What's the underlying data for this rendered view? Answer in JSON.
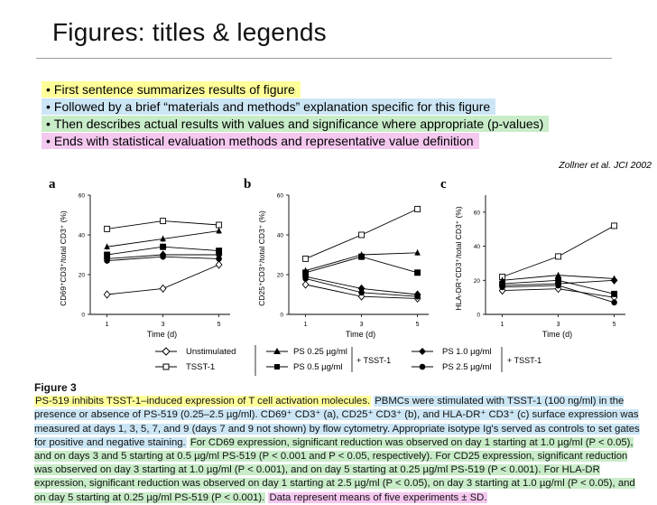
{
  "slide": {
    "title": "Figures: titles & legends"
  },
  "bullets": [
    {
      "dot": "•",
      "text": "First sentence summarizes results of figure",
      "color": "#ffff99"
    },
    {
      "dot": "•",
      "text": "Followed by a brief “materials and methods” explanation specific for this figure",
      "color": "#cce6f5"
    },
    {
      "dot": "•",
      "text": "Then describes actual results with values and significance where appropriate (p-values)",
      "color": "#c8ecc8"
    },
    {
      "dot": "•",
      "text": "Ends with statistical evaluation methods and representative value definition",
      "color": "#f5c8f0"
    }
  ],
  "citation": "Zollner et al. JCI 2002",
  "legend": {
    "unstimulated": "Unstimulated",
    "tsst1": "TSST-1",
    "ps025": "PS 0.25 µg/ml",
    "ps05": "PS 0.5 µg/ml",
    "ps1": "PS 1.0 µg/ml",
    "ps25": "PS 2.5 µg/ml",
    "plus_tsst_1": "+ TSST-1",
    "plus_tsst_2": "+ TSST-1"
  },
  "caption": {
    "figure_label": "Figure 3",
    "sentence_title": "PS-519 inhibits TSST-1–induced expression of T cell activation molecules.",
    "sentence_methods": "PBMCs were stimulated with TSST-1 (100 ng/ml) in the presence or absence of PS-519 (0.25–2.5 µg/ml). CD69⁺ CD3⁺ (a), CD25⁺ CD3⁺ (b), and HLA-DR⁺ CD3⁺ (c) surface expression was measured at days 1, 3, 5, 7, and 9 (days 7 and 9 not shown) by flow cytometry. Appropriate isotype Ig's served as controls to set gates for positive and negative staining.",
    "sentence_results": "For CD69 expression, significant reduction was observed on day 1 starting at 1.0 µg/ml (P < 0.05), and on days 3 and 5 starting at 0.5 µg/ml PS-519 (P < 0.001 and P < 0.05, respectively). For CD25 expression, significant reduction was observed on day 3 starting at 1.0 µg/ml (P < 0.001), and on day 5 starting at 0.25 µg/ml PS-519 (P < 0.001). For HLA-DR expression, significant reduction was observed on day 1 starting at 2.5 µg/ml (P < 0.05), on day 3 starting at 1.0 µg/ml (P < 0.05), and on day 5 starting at 0.25 µg/ml PS-519 (P < 0.001).",
    "sentence_stats": "Data represent means of five experiments ± SD."
  },
  "chart_data": [
    {
      "type": "line",
      "panel_label": "a",
      "xlabel": "Time (d)",
      "ylabel": "CD69⁺CD3⁺/total CD3⁺ (%)",
      "x": [
        1,
        3,
        5
      ],
      "xticks": [
        "1",
        "3",
        "5"
      ],
      "yticks": [
        "0",
        "20",
        "40",
        "60"
      ],
      "ylim": [
        0,
        60
      ],
      "series": [
        {
          "name": "Unstimulated",
          "marker": "diamond-open",
          "values": [
            10,
            13,
            25
          ]
        },
        {
          "name": "TSST-1",
          "marker": "square-open",
          "values": [
            43,
            47,
            45
          ]
        },
        {
          "name": "PS 0.25 µg/ml",
          "marker": "triangle",
          "values": [
            34,
            38,
            42
          ]
        },
        {
          "name": "PS 0.5 µg/ml",
          "marker": "square",
          "values": [
            30,
            34,
            32
          ]
        },
        {
          "name": "PS 1.0 µg/ml",
          "marker": "diamond",
          "values": [
            28,
            30,
            30
          ]
        },
        {
          "name": "PS 2.5 µg/ml",
          "marker": "circle",
          "values": [
            27,
            29,
            28
          ]
        }
      ]
    },
    {
      "type": "line",
      "panel_label": "b",
      "xlabel": "Time (d)",
      "ylabel": "CD25⁺CD3⁺/total CD3⁺ (%)",
      "x": [
        1,
        3,
        5
      ],
      "xticks": [
        "1",
        "3",
        "5"
      ],
      "yticks": [
        "0",
        "20",
        "40",
        "60"
      ],
      "ylim": [
        0,
        60
      ],
      "series": [
        {
          "name": "Unstimulated",
          "marker": "diamond-open",
          "values": [
            15,
            9,
            8
          ]
        },
        {
          "name": "TSST-1",
          "marker": "square-open",
          "values": [
            28,
            40,
            53
          ]
        },
        {
          "name": "PS 0.25 µg/ml",
          "marker": "triangle",
          "values": [
            22,
            30,
            31
          ]
        },
        {
          "name": "PS 0.5 µg/ml",
          "marker": "square",
          "values": [
            21,
            29,
            21
          ]
        },
        {
          "name": "PS 1.0 µg/ml",
          "marker": "diamond",
          "values": [
            19,
            13,
            10
          ]
        },
        {
          "name": "PS 2.5 µg/ml",
          "marker": "circle",
          "values": [
            18,
            11,
            9
          ]
        }
      ]
    },
    {
      "type": "line",
      "panel_label": "c",
      "xlabel": "Time (d)",
      "ylabel": "HLA-DR⁺CD3⁺/total CD3⁺ (%)",
      "x": [
        1,
        3,
        5
      ],
      "xticks": [
        "1",
        "3",
        "5"
      ],
      "yticks": [
        "0",
        "20",
        "40",
        "60"
      ],
      "ylim": [
        0,
        70
      ],
      "series": [
        {
          "name": "Unstimulated",
          "marker": "diamond-open",
          "values": [
            14,
            15,
            10
          ]
        },
        {
          "name": "TSST-1",
          "marker": "square-open",
          "values": [
            22,
            34,
            52
          ]
        },
        {
          "name": "PS 0.25 µg/ml",
          "marker": "triangle",
          "values": [
            20,
            23,
            21
          ]
        },
        {
          "name": "PS 0.5 µg/ml",
          "marker": "square",
          "values": [
            18,
            20,
            12
          ]
        },
        {
          "name": "PS 1.0 µg/ml",
          "marker": "diamond",
          "values": [
            17,
            18,
            20
          ]
        },
        {
          "name": "PS 2.5 µg/ml",
          "marker": "circle",
          "values": [
            16,
            17,
            7
          ]
        }
      ]
    }
  ]
}
